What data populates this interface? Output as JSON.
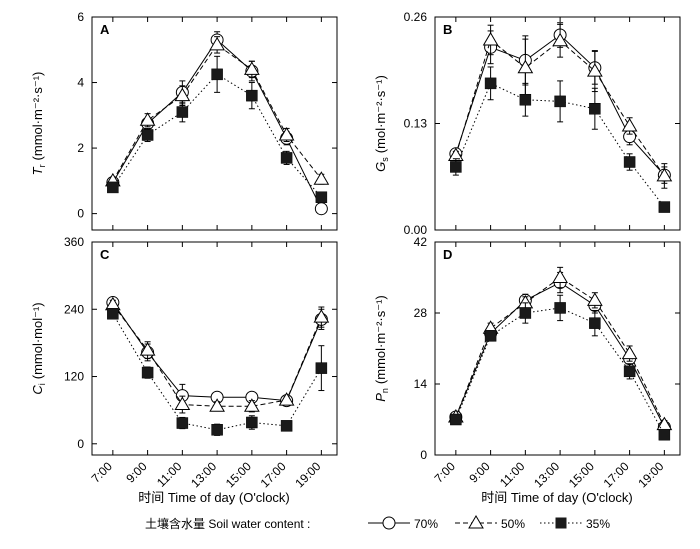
{
  "x_axis_title": "时间  Time of day (O'clock)",
  "legend": {
    "label": "土壤含水量 Soil water content :",
    "entries": [
      {
        "series": "70%",
        "label": "70%"
      },
      {
        "series": "50%",
        "label": "50%"
      },
      {
        "series": "35%",
        "label": "35%"
      }
    ]
  },
  "series_styles": {
    "70%": {
      "marker": "circle",
      "line": "solid",
      "fill": "#ffffff"
    },
    "50%": {
      "marker": "triangle",
      "line": "dashed",
      "fill": "#ffffff"
    },
    "35%": {
      "marker": "square",
      "line": "dotted",
      "fill": "#1a1a1a"
    }
  },
  "chart_data": [
    {
      "panel": "A",
      "type": "line",
      "ylabel_main": "T",
      "ylabel_sub": "r",
      "ylabel_unit": "(mmol·m⁻²·s⁻¹)",
      "x": [
        "7:00",
        "9:00",
        "11:00",
        "13:00",
        "15:00",
        "17:00",
        "19:00"
      ],
      "ylim": [
        -0.5,
        6
      ],
      "yticks": [
        "0",
        "2",
        "4",
        "6"
      ],
      "series": [
        {
          "name": "70%",
          "values": [
            0.95,
            2.75,
            3.7,
            5.3,
            4.35,
            2.3,
            0.15
          ],
          "errors": [
            0.1,
            0.15,
            0.35,
            0.25,
            0.3,
            0.2,
            0.05
          ]
        },
        {
          "name": "50%",
          "values": [
            1.0,
            2.85,
            3.6,
            5.15,
            4.4,
            2.4,
            1.05
          ],
          "errors": [
            0.1,
            0.2,
            0.3,
            0.25,
            0.25,
            0.2,
            0.15
          ]
        },
        {
          "name": "35%",
          "values": [
            0.8,
            2.4,
            3.1,
            4.25,
            3.6,
            1.7,
            0.5
          ],
          "errors": [
            0.1,
            0.2,
            0.3,
            0.55,
            0.4,
            0.2,
            0.1
          ]
        }
      ]
    },
    {
      "panel": "B",
      "type": "line",
      "ylabel_main": "G",
      "ylabel_sub": "s",
      "ylabel_unit": "(mol·m⁻²·s⁻¹)",
      "x": [
        "7:00",
        "9:00",
        "11:00",
        "13:00",
        "15:00",
        "17:00",
        "19:00"
      ],
      "ylim": [
        0,
        0.26
      ],
      "yticks": [
        "0.00",
        "0.13",
        "0.26"
      ],
      "series": [
        {
          "name": "70%",
          "values": [
            0.093,
            0.223,
            0.207,
            0.238,
            0.198,
            0.114,
            0.067
          ],
          "errors": [
            0.005,
            0.02,
            0.03,
            0.015,
            0.02,
            0.01,
            0.01
          ]
        },
        {
          "name": "50%",
          "values": [
            0.091,
            0.232,
            0.198,
            0.231,
            0.194,
            0.127,
            0.066
          ],
          "errors": [
            0.005,
            0.018,
            0.035,
            0.02,
            0.025,
            0.01,
            0.015
          ]
        },
        {
          "name": "35%",
          "values": [
            0.077,
            0.179,
            0.159,
            0.157,
            0.148,
            0.083,
            0.028
          ],
          "errors": [
            0.01,
            0.02,
            0.02,
            0.025,
            0.025,
            0.01,
            0.005
          ]
        }
      ]
    },
    {
      "panel": "C",
      "type": "line",
      "ylabel_main": "C",
      "ylabel_sub": "i",
      "ylabel_unit": "(mmol·mol⁻¹)",
      "x": [
        "7:00",
        "9:00",
        "11:00",
        "13:00",
        "15:00",
        "17:00",
        "19:00"
      ],
      "ylim": [
        -20,
        360
      ],
      "yticks": [
        "0",
        "120",
        "240",
        "360"
      ],
      "series": [
        {
          "name": "70%",
          "values": [
            252,
            163,
            86,
            83,
            83,
            77,
            222
          ],
          "errors": [
            8,
            15,
            20,
            8,
            8,
            6,
            18
          ]
        },
        {
          "name": "50%",
          "values": [
            248,
            167,
            70,
            67,
            67,
            78,
            226
          ],
          "errors": [
            8,
            15,
            15,
            8,
            10,
            6,
            18
          ]
        },
        {
          "name": "35%",
          "values": [
            232,
            127,
            37,
            25,
            38,
            32,
            135
          ],
          "errors": [
            8,
            10,
            10,
            10,
            12,
            5,
            40
          ]
        }
      ]
    },
    {
      "panel": "D",
      "type": "line",
      "ylabel_main": "P",
      "ylabel_sub": "n",
      "ylabel_unit": "(mmol·m⁻²·s⁻¹)",
      "x": [
        "7:00",
        "9:00",
        "11:00",
        "13:00",
        "15:00",
        "17:00",
        "19:00"
      ],
      "ylim": [
        0,
        42
      ],
      "yticks": [
        "0",
        "14",
        "28",
        "42"
      ],
      "series": [
        {
          "name": "70%",
          "values": [
            7.5,
            24.0,
            30.5,
            34.0,
            29.5,
            19.0,
            5.5
          ],
          "errors": [
            0.5,
            1.0,
            1.2,
            2.0,
            1.5,
            1.5,
            0.8
          ]
        },
        {
          "name": "50%",
          "values": [
            7.5,
            25.0,
            30.0,
            35.0,
            30.5,
            20.0,
            6.0
          ],
          "errors": [
            0.5,
            1.0,
            1.2,
            2.0,
            1.5,
            1.5,
            0.8
          ]
        },
        {
          "name": "35%",
          "values": [
            7.0,
            23.5,
            28.0,
            29.0,
            26.0,
            16.5,
            4.0
          ],
          "errors": [
            0.5,
            1.0,
            2.0,
            2.5,
            2.5,
            1.5,
            0.8
          ]
        }
      ]
    }
  ]
}
